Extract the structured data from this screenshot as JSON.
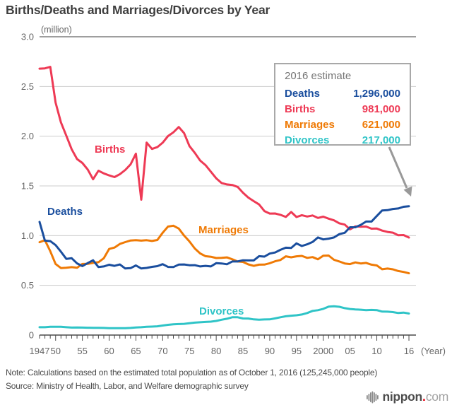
{
  "title": "Births/Deaths and Marriages/Divorces by Year",
  "note": "Note: Calculations based on the estimated total population as of October 1, 2016 (125,245,000 people)",
  "source": "Source: Ministry of Health, Labor, and Welfare demographic survey",
  "logo": {
    "name": "nippon",
    "dot": ".",
    "tld": "com"
  },
  "callout": {
    "title": "2016 estimate",
    "rows": [
      {
        "label": "Deaths",
        "value": "1,296,000",
        "color": "#1a4e9e"
      },
      {
        "label": "Births",
        "value": "981,000",
        "color": "#ee3a55"
      },
      {
        "label": "Marriages",
        "value": "621,000",
        "color": "#ef7a05"
      },
      {
        "label": "Divorces",
        "value": "217,000",
        "color": "#2fc4c7"
      }
    ]
  },
  "chart_data": {
    "type": "line",
    "title": "Births/Deaths and Marriages/Divorces by Year",
    "ylabel": "(million)",
    "xlabel": "(Year)",
    "ylim": [
      0,
      3.0
    ],
    "grid": true,
    "y_axis": {
      "unit": "(million)",
      "ticks": [
        3.0,
        2.5,
        2.0,
        1.5,
        1.0,
        0.5,
        0
      ],
      "labels": [
        "3.0",
        "2.5",
        "2.0",
        "1.5",
        "1.0",
        "0.5",
        "0"
      ]
    },
    "x_axis": {
      "unit": "(Year)",
      "labeled_years": [
        1947,
        1950,
        1955,
        1960,
        1965,
        1970,
        1975,
        1980,
        1985,
        1990,
        1995,
        2000,
        2005,
        2010,
        2016
      ],
      "labels": [
        "1947",
        "50",
        "55",
        "60",
        "65",
        "70",
        "75",
        "80",
        "85",
        "90",
        "95",
        "2000",
        "05",
        "10",
        "16"
      ]
    },
    "years": [
      1947,
      1948,
      1949,
      1950,
      1951,
      1952,
      1953,
      1954,
      1955,
      1956,
      1957,
      1958,
      1959,
      1960,
      1961,
      1962,
      1963,
      1964,
      1965,
      1966,
      1967,
      1968,
      1969,
      1970,
      1971,
      1972,
      1973,
      1974,
      1975,
      1976,
      1977,
      1978,
      1979,
      1980,
      1981,
      1982,
      1983,
      1984,
      1985,
      1986,
      1987,
      1988,
      1989,
      1990,
      1991,
      1992,
      1993,
      1994,
      1995,
      1996,
      1997,
      1998,
      1999,
      2000,
      2001,
      2002,
      2003,
      2004,
      2005,
      2006,
      2007,
      2008,
      2009,
      2010,
      2011,
      2012,
      2013,
      2014,
      2015,
      2016
    ],
    "series": [
      {
        "name": "Divorces",
        "color": "#2fc4c7",
        "values": [
          0.079,
          0.079,
          0.084,
          0.083,
          0.083,
          0.079,
          0.075,
          0.076,
          0.075,
          0.074,
          0.073,
          0.073,
          0.072,
          0.069,
          0.069,
          0.069,
          0.07,
          0.072,
          0.077,
          0.079,
          0.083,
          0.085,
          0.088,
          0.096,
          0.103,
          0.108,
          0.111,
          0.113,
          0.119,
          0.125,
          0.129,
          0.132,
          0.135,
          0.142,
          0.154,
          0.164,
          0.179,
          0.179,
          0.167,
          0.166,
          0.158,
          0.154,
          0.157,
          0.158,
          0.168,
          0.179,
          0.189,
          0.195,
          0.199,
          0.207,
          0.222,
          0.243,
          0.25,
          0.264,
          0.286,
          0.29,
          0.284,
          0.271,
          0.262,
          0.257,
          0.255,
          0.251,
          0.253,
          0.251,
          0.236,
          0.235,
          0.231,
          0.222,
          0.226,
          0.217
        ]
      },
      {
        "name": "Marriages",
        "color": "#ef7a05",
        "values": [
          0.934,
          0.954,
          0.843,
          0.715,
          0.674,
          0.677,
          0.683,
          0.677,
          0.715,
          0.716,
          0.726,
          0.733,
          0.773,
          0.866,
          0.88,
          0.916,
          0.935,
          0.951,
          0.954,
          0.95,
          0.954,
          0.946,
          0.956,
          1.029,
          1.091,
          1.1,
          1.071,
          1.0,
          0.942,
          0.871,
          0.821,
          0.793,
          0.788,
          0.775,
          0.776,
          0.781,
          0.762,
          0.74,
          0.736,
          0.711,
          0.696,
          0.708,
          0.709,
          0.722,
          0.742,
          0.755,
          0.792,
          0.782,
          0.792,
          0.796,
          0.776,
          0.784,
          0.762,
          0.798,
          0.8,
          0.757,
          0.74,
          0.72,
          0.714,
          0.731,
          0.72,
          0.726,
          0.708,
          0.7,
          0.662,
          0.669,
          0.661,
          0.644,
          0.635,
          0.621
        ]
      },
      {
        "name": "Births",
        "color": "#ee3a55",
        "values": [
          2.679,
          2.682,
          2.697,
          2.338,
          2.138,
          2.005,
          1.868,
          1.77,
          1.731,
          1.665,
          1.567,
          1.653,
          1.626,
          1.606,
          1.589,
          1.618,
          1.66,
          1.717,
          1.824,
          1.361,
          1.936,
          1.872,
          1.89,
          1.934,
          2.001,
          2.039,
          2.092,
          2.03,
          1.901,
          1.833,
          1.755,
          1.709,
          1.643,
          1.577,
          1.529,
          1.515,
          1.509,
          1.49,
          1.432,
          1.383,
          1.347,
          1.314,
          1.247,
          1.222,
          1.223,
          1.209,
          1.188,
          1.238,
          1.187,
          1.206,
          1.192,
          1.203,
          1.178,
          1.191,
          1.171,
          1.154,
          1.124,
          1.111,
          1.063,
          1.093,
          1.09,
          1.091,
          1.07,
          1.071,
          1.051,
          1.037,
          1.03,
          1.004,
          1.006,
          0.981
        ]
      },
      {
        "name": "Deaths",
        "color": "#1a4e9e",
        "values": [
          1.138,
          0.95,
          0.945,
          0.905,
          0.838,
          0.766,
          0.773,
          0.721,
          0.694,
          0.724,
          0.752,
          0.684,
          0.69,
          0.707,
          0.696,
          0.71,
          0.67,
          0.673,
          0.7,
          0.67,
          0.675,
          0.686,
          0.693,
          0.713,
          0.685,
          0.684,
          0.709,
          0.71,
          0.702,
          0.703,
          0.69,
          0.696,
          0.69,
          0.723,
          0.72,
          0.712,
          0.74,
          0.74,
          0.752,
          0.751,
          0.751,
          0.793,
          0.789,
          0.82,
          0.83,
          0.857,
          0.879,
          0.876,
          0.922,
          0.896,
          0.913,
          0.936,
          0.982,
          0.962,
          0.97,
          0.982,
          1.015,
          1.029,
          1.084,
          1.084,
          1.108,
          1.142,
          1.142,
          1.197,
          1.253,
          1.256,
          1.268,
          1.273,
          1.29,
          1.296
        ]
      }
    ],
    "on_chart_labels": [
      "Births",
      "Deaths",
      "Marriages",
      "Divorces"
    ],
    "annotation_colors": {
      "grid": "#cccccc",
      "top_rule": "#7f7f7f",
      "axis": "#4a4a4a",
      "arrow": "#999999",
      "tick_label": "#666666"
    }
  }
}
